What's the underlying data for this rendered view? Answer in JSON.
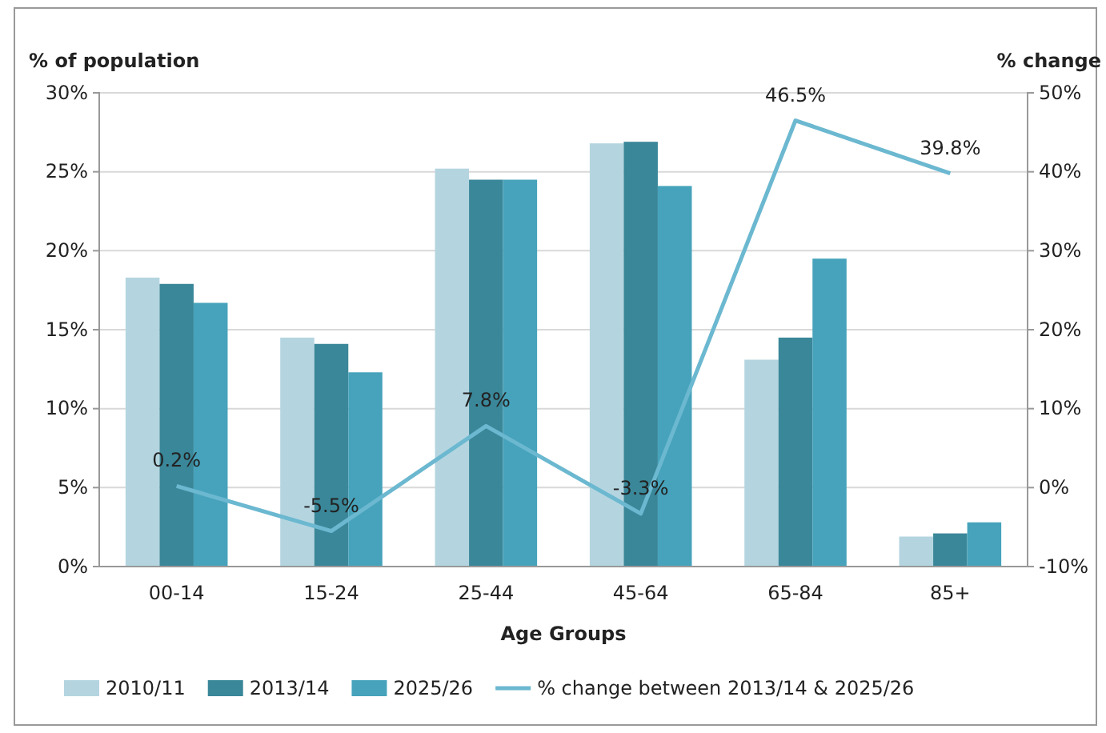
{
  "chart_data": {
    "type": "bar",
    "ylabel": "% of population",
    "y2label": "% change",
    "xlabel": "Age Groups",
    "categories": [
      "00-14",
      "15-24",
      "25-44",
      "45-64",
      "65-84",
      "85+"
    ],
    "series": [
      {
        "name": "2010/11",
        "color": "#b4d5e0",
        "values": [
          18.3,
          14.5,
          25.2,
          26.8,
          13.1,
          1.9
        ]
      },
      {
        "name": "2013/14",
        "color": "#3a8799",
        "values": [
          17.9,
          14.1,
          24.5,
          26.9,
          14.5,
          2.1
        ]
      },
      {
        "name": "2025/26",
        "color": "#46a3bb",
        "values": [
          16.7,
          12.3,
          24.5,
          24.1,
          19.5,
          2.8
        ]
      },
      {
        "name": "% change between 2013/14 & 2025/26",
        "type": "line",
        "axis": "y2",
        "color": "#6bb8d0",
        "values": [
          0.2,
          -5.5,
          7.8,
          -3.3,
          46.5,
          39.8
        ],
        "value_labels": [
          "0.2%",
          "-5.5%",
          "7.8%",
          "-3.3%",
          "46.5%",
          "39.8%"
        ]
      }
    ],
    "ylim": [
      0,
      30
    ],
    "yticks": [
      {
        "value": 0,
        "label": "0%"
      },
      {
        "value": 5,
        "label": "5%"
      },
      {
        "value": 10,
        "label": "10%"
      },
      {
        "value": 15,
        "label": "15%"
      },
      {
        "value": 20,
        "label": "20%"
      },
      {
        "value": 25,
        "label": "25%"
      },
      {
        "value": 30,
        "label": "30%"
      }
    ],
    "y2lim": [
      -10,
      50
    ],
    "y2ticks": [
      {
        "value": -10,
        "label": "-10%"
      },
      {
        "value": 0,
        "label": "0%"
      },
      {
        "value": 10,
        "label": "10%"
      },
      {
        "value": 20,
        "label": "20%"
      },
      {
        "value": 30,
        "label": "30%"
      },
      {
        "value": 40,
        "label": "40%"
      },
      {
        "value": 50,
        "label": "50%"
      }
    ],
    "grid": "y",
    "legend": "bottom"
  }
}
